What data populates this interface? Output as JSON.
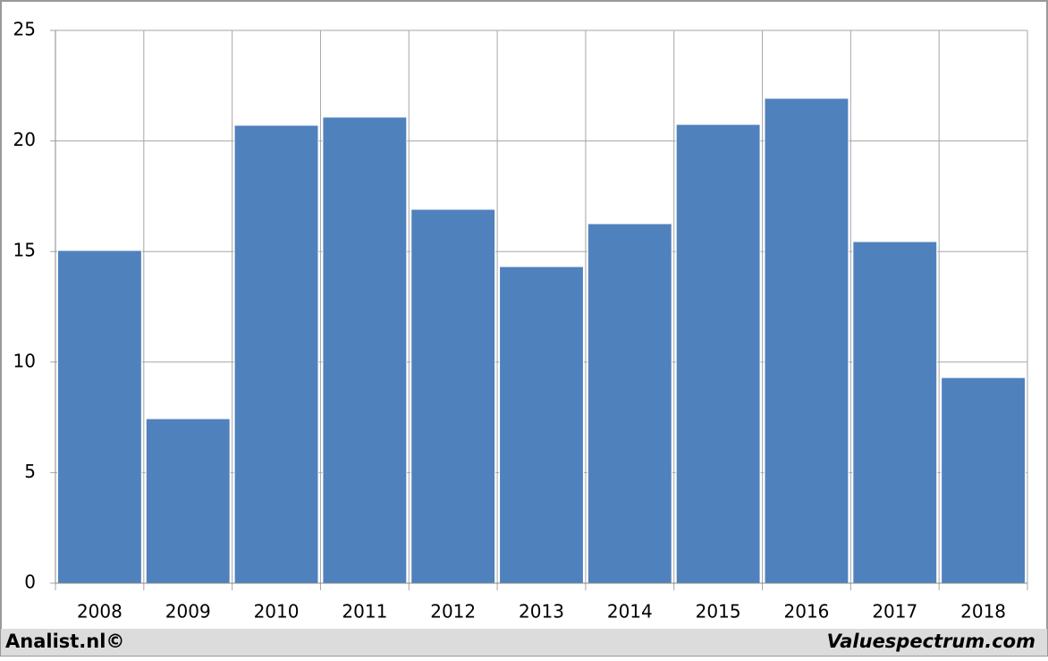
{
  "chart_data": {
    "type": "bar",
    "categories": [
      "2008",
      "2009",
      "2010",
      "2011",
      "2012",
      "2013",
      "2014",
      "2015",
      "2016",
      "2017",
      "2018"
    ],
    "values": [
      15.05,
      7.44,
      20.71,
      21.08,
      16.91,
      14.32,
      16.26,
      20.75,
      21.93,
      15.45,
      9.3
    ],
    "color": "#4f81bd",
    "ylim": [
      0,
      25
    ],
    "yticks": [
      0,
      5,
      10,
      15,
      20,
      25
    ],
    "grid": true
  },
  "footer": {
    "left": "Analist.nl©",
    "right": "Valuespectrum.com"
  }
}
